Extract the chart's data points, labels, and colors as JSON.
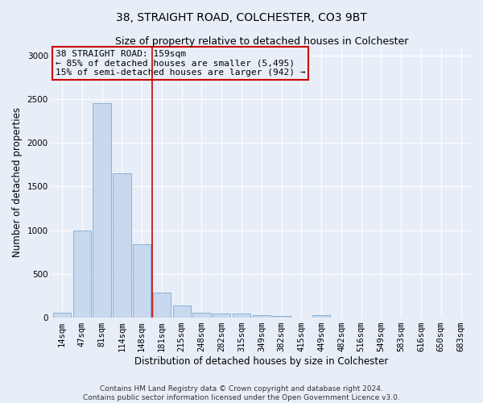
{
  "title": "38, STRAIGHT ROAD, COLCHESTER, CO3 9BT",
  "subtitle": "Size of property relative to detached houses in Colchester",
  "xlabel": "Distribution of detached houses by size in Colchester",
  "ylabel": "Number of detached properties",
  "categories": [
    "14sqm",
    "47sqm",
    "81sqm",
    "114sqm",
    "148sqm",
    "181sqm",
    "215sqm",
    "248sqm",
    "282sqm",
    "315sqm",
    "349sqm",
    "382sqm",
    "415sqm",
    "449sqm",
    "482sqm",
    "516sqm",
    "549sqm",
    "583sqm",
    "616sqm",
    "650sqm",
    "683sqm"
  ],
  "values": [
    60,
    1000,
    2450,
    1650,
    840,
    290,
    140,
    55,
    50,
    45,
    30,
    20,
    0,
    25,
    0,
    0,
    0,
    0,
    0,
    0,
    0
  ],
  "bar_color": "#c8d8ee",
  "bar_edge_color": "#7aaad0",
  "vline_x": 4.5,
  "vline_color": "#cc0000",
  "annotation_text": "38 STRAIGHT ROAD: 159sqm\n← 85% of detached houses are smaller (5,495)\n15% of semi-detached houses are larger (942) →",
  "annotation_box_color": "#cc0000",
  "ylim": [
    0,
    3100
  ],
  "yticks": [
    0,
    500,
    1000,
    1500,
    2000,
    2500,
    3000
  ],
  "footer": "Contains HM Land Registry data © Crown copyright and database right 2024.\nContains public sector information licensed under the Open Government Licence v3.0.",
  "bg_color": "#e8eef8",
  "grid_color": "#ffffff",
  "title_fontsize": 10,
  "subtitle_fontsize": 9,
  "axis_label_fontsize": 8.5,
  "tick_fontsize": 7.5,
  "footer_fontsize": 6.5
}
